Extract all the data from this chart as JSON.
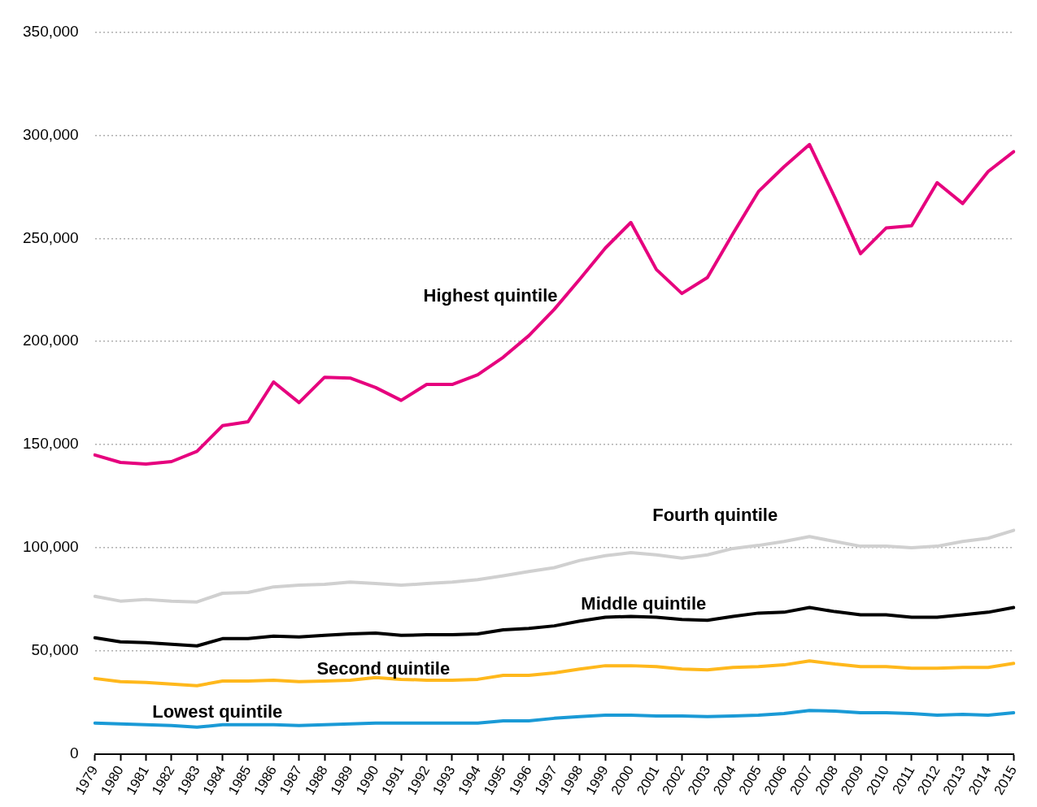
{
  "chart_data": {
    "type": "line",
    "categories": [
      "1979",
      "1980",
      "1981",
      "1982",
      "1983",
      "1984",
      "1985",
      "1986",
      "1987",
      "1988",
      "1989",
      "1990",
      "1991",
      "1992",
      "1993",
      "1994",
      "1995",
      "1996",
      "1997",
      "1998",
      "1999",
      "2000",
      "2001",
      "2002",
      "2003",
      "2004",
      "2005",
      "2006",
      "2007",
      "2008",
      "2009",
      "2010",
      "2011",
      "2012",
      "2013",
      "2014",
      "2015"
    ],
    "series": [
      {
        "name": "Highest quintile",
        "color": "#e6007e",
        "values": [
          145000,
          141400,
          140600,
          141800,
          146800,
          159200,
          161100,
          180400,
          170400,
          182700,
          182300,
          177700,
          171500,
          179200,
          179200,
          183900,
          192400,
          202800,
          215600,
          230200,
          245300,
          257700,
          234900,
          223300,
          231000,
          252300,
          272700,
          284700,
          295500,
          269600,
          242600,
          255000,
          256100,
          277000,
          266900,
          282400,
          292000
        ]
      },
      {
        "name": "Fourth quintile",
        "color": "#d0d0d0",
        "values": [
          76500,
          74200,
          75000,
          74200,
          73800,
          78000,
          78400,
          81100,
          81900,
          82300,
          83400,
          82700,
          81900,
          82700,
          83400,
          84600,
          86500,
          88500,
          90400,
          93900,
          96200,
          97700,
          96600,
          95000,
          96600,
          99700,
          101200,
          103100,
          105500,
          103100,
          100800,
          100800,
          100100,
          100800,
          103100,
          104700,
          108500
        ]
      },
      {
        "name": "Middle quintile",
        "color": "#000000",
        "values": [
          56400,
          54500,
          54100,
          53300,
          52500,
          56000,
          56000,
          57200,
          56800,
          57600,
          58300,
          58700,
          57600,
          57900,
          57900,
          58300,
          60300,
          61000,
          62200,
          64500,
          66400,
          66800,
          66400,
          65300,
          64900,
          66800,
          68400,
          68800,
          71100,
          69100,
          67600,
          67600,
          66400,
          66400,
          67600,
          68800,
          71100
        ]
      },
      {
        "name": "Second quintile",
        "color": "#ffb81c",
        "values": [
          36700,
          35200,
          34800,
          34000,
          33200,
          35500,
          35500,
          35900,
          35200,
          35500,
          35900,
          37100,
          36300,
          35900,
          35900,
          36300,
          38200,
          38200,
          39400,
          41300,
          42900,
          42900,
          42500,
          41300,
          40900,
          42100,
          42500,
          43300,
          45200,
          43700,
          42500,
          42500,
          41700,
          41700,
          42100,
          42100,
          44000
        ]
      },
      {
        "name": "Lowest quintile",
        "color": "#1a9ad6",
        "values": [
          15100,
          14700,
          14300,
          13900,
          13100,
          14300,
          14300,
          14300,
          13900,
          14300,
          14700,
          15100,
          15100,
          15100,
          15100,
          15100,
          16200,
          16200,
          17400,
          18200,
          18900,
          18900,
          18500,
          18500,
          18200,
          18500,
          18900,
          19700,
          21200,
          20900,
          20100,
          20100,
          19700,
          18900,
          19300,
          18900,
          20100
        ]
      }
    ],
    "ylim": [
      0,
      350000
    ],
    "yticks": [
      0,
      {
        "value": 50000,
        "label": "50,000"
      },
      {
        "value": 100000,
        "label": "100,000"
      },
      {
        "value": 150000,
        "label": "150,000"
      },
      {
        "value": 200000,
        "label": "200,000"
      },
      {
        "value": 250000,
        "label": "250,000"
      },
      {
        "value": 300000,
        "label": "300,000"
      },
      {
        "value": 350000,
        "label": "350,000"
      }
    ],
    "grid": "y",
    "legend": false,
    "marker": "none",
    "line_style": "solid"
  }
}
